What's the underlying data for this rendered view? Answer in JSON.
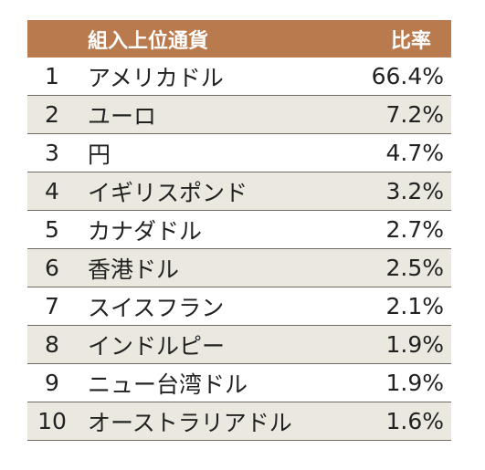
{
  "table": {
    "headers": {
      "rank": "",
      "currency": "組入上位通貨",
      "ratio": "比率"
    },
    "rows": [
      {
        "rank": "1",
        "currency": "アメリカドル",
        "ratio": "66.4%"
      },
      {
        "rank": "2",
        "currency": "ユーロ",
        "ratio": "7.2%"
      },
      {
        "rank": "3",
        "currency": "円",
        "ratio": "4.7%"
      },
      {
        "rank": "4",
        "currency": "イギリスポンド",
        "ratio": "3.2%"
      },
      {
        "rank": "5",
        "currency": "カナダドル",
        "ratio": "2.7%"
      },
      {
        "rank": "6",
        "currency": "香港ドル",
        "ratio": "2.5%"
      },
      {
        "rank": "7",
        "currency": "スイスフラン",
        "ratio": "2.1%"
      },
      {
        "rank": "8",
        "currency": "インドルピー",
        "ratio": "1.9%"
      },
      {
        "rank": "9",
        "currency": "ニュー台湾ドル",
        "ratio": "1.9%"
      },
      {
        "rank": "10",
        "currency": "オーストラリアドル",
        "ratio": "1.6%"
      }
    ]
  },
  "colors": {
    "header_bg": "#b97a4e",
    "header_text": "#ffffff",
    "stripe_bg": "#ebe8df",
    "rule": "#6e6a64"
  }
}
